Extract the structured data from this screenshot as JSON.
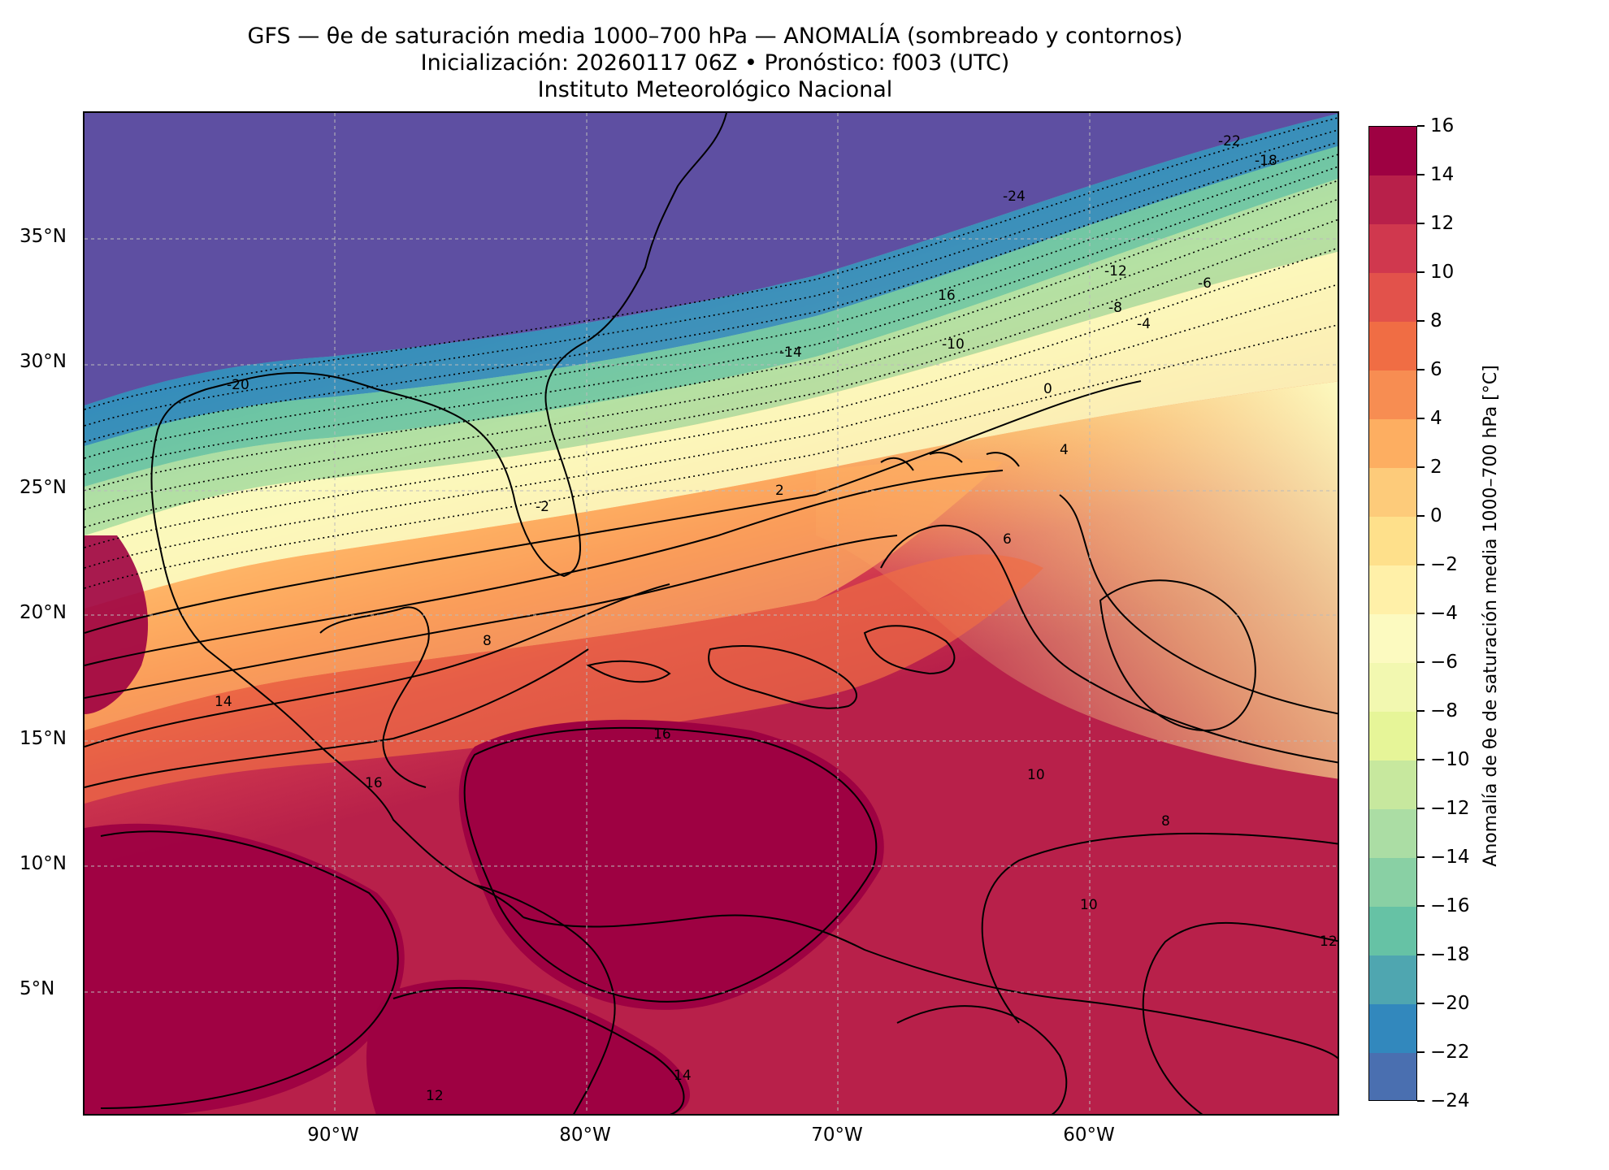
{
  "title": {
    "line1": "GFS — θe de saturación media 1000–700 hPa — ANOMALÍA (sombreado y contornos)",
    "line2": "Inicialización: 20260117 06Z   •   Pronóstico: f003 (UTC)",
    "line3": "Instituto Meteorológico Nacional"
  },
  "axes": {
    "lat_ticks": [
      "35°N",
      "30°N",
      "25°N",
      "20°N",
      "15°N",
      "10°N",
      "5°N"
    ],
    "lon_ticks": [
      "90°W",
      "80°W",
      "70°W",
      "60°W"
    ]
  },
  "colorbar": {
    "label": "Anomalía de θe de saturación media 1000–700 hPa [°C]",
    "ticks": [
      "16",
      "14",
      "12",
      "10",
      "8",
      "6",
      "4",
      "2",
      "0",
      "−2",
      "−4",
      "−6",
      "−8",
      "−10",
      "−12",
      "−14",
      "−16",
      "−18",
      "−20",
      "−22",
      "−24"
    ],
    "colors": [
      "#9e0142",
      "#b8204a",
      "#d0384e",
      "#e2524b",
      "#f06d44",
      "#f78d52",
      "#fdae61",
      "#fdcb7a",
      "#fee08b",
      "#fff0a8",
      "#fcfac0",
      "#f2f8b0",
      "#e6f598",
      "#c7e89e",
      "#abdda4",
      "#89d0a4",
      "#66c2a5",
      "#4fa6b0",
      "#3288bd",
      "#4a6fb0",
      "#5e4fa2"
    ]
  },
  "contour_labels": [
    "-24",
    "-22",
    "-18",
    "16",
    "-12",
    "-6",
    "-8",
    "-4",
    "-10",
    "-14",
    "-20",
    "0",
    "4",
    "2",
    "6",
    "-2",
    "8",
    "10",
    "16",
    "14",
    "16",
    "12",
    "10",
    "12",
    "14",
    "8"
  ],
  "colors": {
    "cold_core": "#5e4fa2",
    "warm_core": "#9e0142",
    "land_outline": "#000000"
  }
}
